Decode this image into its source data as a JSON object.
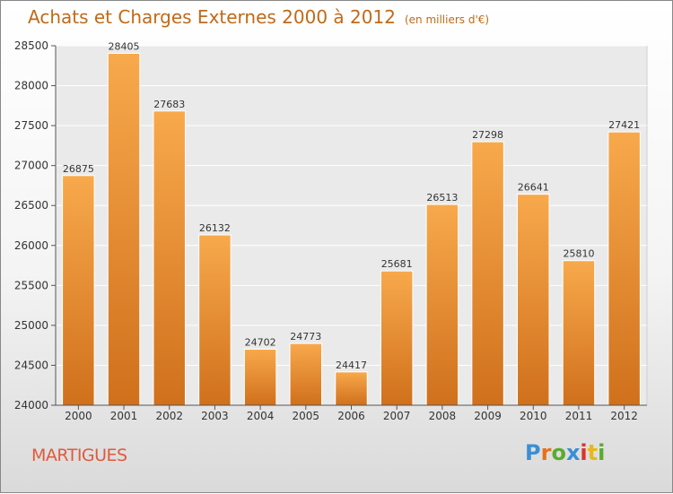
{
  "title": "Achats et Charges Externes 2000 à 2012",
  "subtitle": "(en milliers d'€)",
  "city": "MARTIGUES",
  "logo": {
    "text": "Proxiti",
    "colors": [
      "#3a8fd6",
      "#e8701a",
      "#5aab2e",
      "#3a8fd6",
      "#d8342a",
      "#e8b81a",
      "#5aab2e"
    ]
  },
  "colors": {
    "bar_light": "#f8a94c",
    "bar_dark": "#d0701c",
    "title": "#c06a18",
    "city": "#e05a3c"
  },
  "chart_data": {
    "type": "bar",
    "categories": [
      "2000",
      "2001",
      "2002",
      "2003",
      "2004",
      "2005",
      "2006",
      "2007",
      "2008",
      "2009",
      "2010",
      "2011",
      "2012"
    ],
    "values": [
      26875,
      28405,
      27683,
      26132,
      24702,
      24773,
      24417,
      25681,
      26513,
      27298,
      26641,
      25810,
      27421
    ],
    "ylim": [
      24000,
      28500
    ],
    "yticks": [
      24000,
      24500,
      25000,
      25500,
      26000,
      26500,
      27000,
      27500,
      28000,
      28500
    ],
    "grid": true
  }
}
